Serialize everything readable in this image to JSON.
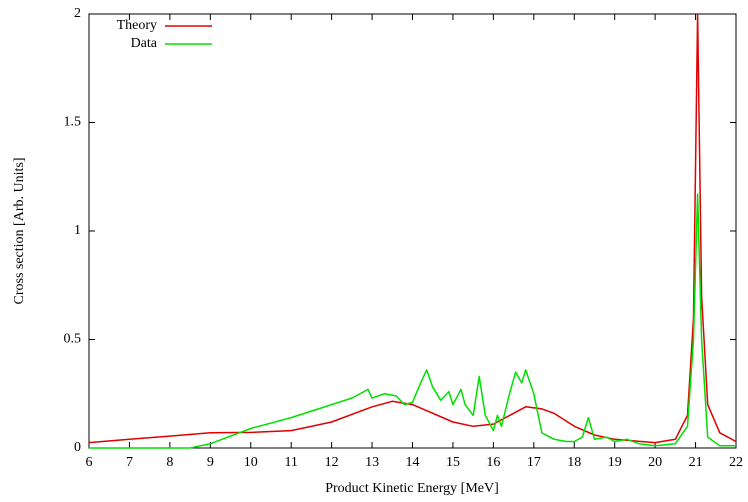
{
  "chart_data": {
    "type": "line",
    "xlabel": "Product Kinetic Energy [MeV]",
    "ylabel": "Cross section [Arb. Units]",
    "xlim": [
      6,
      22
    ],
    "xticks": [
      6,
      7,
      8,
      9,
      10,
      11,
      12,
      13,
      14,
      15,
      16,
      17,
      18,
      19,
      20,
      21,
      22
    ],
    "ylim": [
      0,
      2
    ],
    "yticks": [
      0,
      0.5,
      1,
      1.5,
      2
    ],
    "legend": "top-left",
    "series": [
      {
        "name": "Theory",
        "color": "#e00000",
        "x": [
          6,
          7,
          8,
          9,
          10,
          11,
          12,
          13,
          13.5,
          14,
          15,
          15.5,
          16,
          16.5,
          16.8,
          17.2,
          17.5,
          18,
          18.5,
          19,
          20,
          20.5,
          20.8,
          20.95,
          21.05,
          21.15,
          21.3,
          21.6,
          22
        ],
        "values": [
          0.025,
          0.04,
          0.055,
          0.07,
          0.072,
          0.08,
          0.12,
          0.19,
          0.215,
          0.2,
          0.12,
          0.1,
          0.11,
          0.16,
          0.19,
          0.18,
          0.16,
          0.1,
          0.06,
          0.04,
          0.025,
          0.04,
          0.15,
          0.6,
          2.0,
          0.7,
          0.2,
          0.07,
          0.03
        ]
      },
      {
        "name": "Data",
        "color": "#00e000",
        "x": [
          6,
          8.5,
          9,
          10,
          11,
          12,
          12.5,
          12.9,
          13,
          13.3,
          13.6,
          13.8,
          14,
          14.2,
          14.35,
          14.5,
          14.7,
          14.9,
          15,
          15.2,
          15.3,
          15.5,
          15.65,
          15.8,
          16,
          16.1,
          16.2,
          16.4,
          16.55,
          16.7,
          16.8,
          17,
          17.2,
          17.5,
          17.8,
          18,
          18.2,
          18.35,
          18.5,
          18.8,
          19,
          19.3,
          19.6,
          20,
          20.5,
          20.8,
          20.95,
          21.05,
          21.15,
          21.3,
          21.6,
          22
        ],
        "values": [
          0,
          0,
          0.02,
          0.09,
          0.14,
          0.2,
          0.23,
          0.27,
          0.23,
          0.25,
          0.24,
          0.2,
          0.21,
          0.3,
          0.36,
          0.28,
          0.22,
          0.26,
          0.2,
          0.27,
          0.2,
          0.15,
          0.33,
          0.15,
          0.08,
          0.15,
          0.1,
          0.25,
          0.35,
          0.3,
          0.36,
          0.25,
          0.07,
          0.04,
          0.03,
          0.03,
          0.05,
          0.14,
          0.04,
          0.05,
          0.03,
          0.04,
          0.02,
          0.01,
          0.02,
          0.1,
          0.5,
          1.17,
          0.5,
          0.05,
          0.01,
          0.01
        ]
      }
    ]
  }
}
